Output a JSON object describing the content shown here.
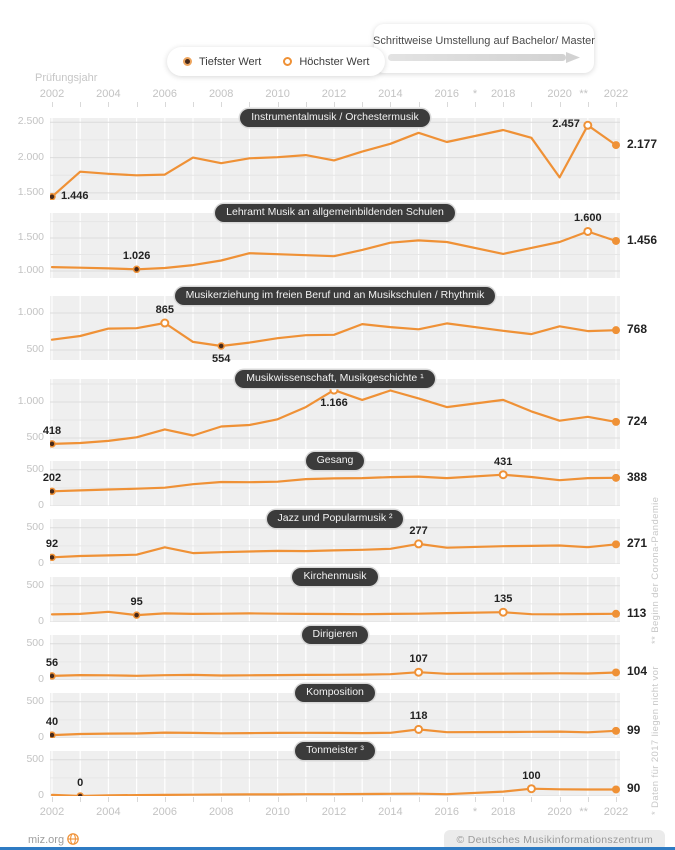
{
  "header": {
    "legend": {
      "min_label": "Tiefster Wert",
      "max_label": "Höchster Wert"
    },
    "transition_note": "Schrittweise Umstellung auf Bachelor/ Master",
    "axis_title": "Prüfungsjahr"
  },
  "axis": {
    "labeled_years": [
      "2002",
      "2004",
      "2006",
      "2008",
      "2010",
      "2012",
      "2014",
      "2016",
      "2018",
      "2020",
      "2022"
    ],
    "star": "*",
    "double_star": "**"
  },
  "footnotes": {
    "pandemic": "** Beginn der Corona-Pandemie",
    "missing_2017": "* Daten für  2017 liegen nicht vor"
  },
  "footer": {
    "site": "miz.org",
    "copyright": "© Deutsches Musikinformationszentrum"
  },
  "colors": {
    "line": "#ef9136",
    "min_dot_fill": "#46291a",
    "max_dot_fill": "#ffffff",
    "title_pill_bg": "#3b3b3b",
    "plot_bg": "#efefef",
    "grid_major": "#dcdcdc",
    "grid_minor": "#e6e6e6",
    "grid_vertical": "#ffffff",
    "axis_text": "#c3c3c3",
    "value_text": "#222222",
    "bottom_bar": "#2f7bc3"
  },
  "chart_data": {
    "type": "line",
    "x_years": [
      2002,
      2003,
      2004,
      2005,
      2006,
      2007,
      2008,
      2009,
      2010,
      2011,
      2012,
      2013,
      2014,
      2015,
      2016,
      2018,
      2019,
      2020,
      2021,
      2022
    ],
    "x_range": [
      2002,
      2022
    ],
    "grid": true,
    "legend_position": "top",
    "panels": [
      {
        "title": "Instrumentalmusik / Orchestermusik",
        "y_ticks": [
          {
            "value": 2500,
            "label": "2.500"
          },
          {
            "value": 2000,
            "label": "2.000"
          },
          {
            "value": 1500,
            "label": "1.500"
          }
        ],
        "y_range": [
          1400,
          2560
        ],
        "values": [
          1446,
          1800,
          1770,
          1750,
          1760,
          2000,
          1920,
          1990,
          2005,
          2035,
          1960,
          2085,
          2195,
          2350,
          2220,
          2390,
          2280,
          1720,
          2457,
          2177
        ],
        "min": {
          "year": 2002,
          "value": 1446,
          "label": "1.446",
          "label_pos": "right"
        },
        "max": {
          "year": 2021,
          "value": 2457,
          "label": "2.457",
          "label_pos": "left"
        },
        "end": {
          "year": 2022,
          "value": 2177,
          "label": "2.177"
        }
      },
      {
        "title": "Lehramt Musik an allgemeinbildenden Schulen",
        "y_ticks": [
          {
            "value": 1500,
            "label": "1.500"
          },
          {
            "value": 1000,
            "label": "1.000"
          }
        ],
        "y_range": [
          894,
          1880
        ],
        "values": [
          1060,
          1050,
          1040,
          1026,
          1045,
          1090,
          1160,
          1270,
          1255,
          1240,
          1225,
          1320,
          1430,
          1465,
          1440,
          1260,
          1350,
          1440,
          1600,
          1456
        ],
        "min": {
          "year": 2005,
          "value": 1026,
          "label": "1.026",
          "label_pos": "above"
        },
        "max": {
          "year": 2021,
          "value": 1600,
          "label": "1.600",
          "label_pos": "above"
        },
        "end": {
          "year": 2022,
          "value": 1456,
          "label": "1.456"
        }
      },
      {
        "title": "Musikerziehung im freien Beruf und an Musikschulen / Rhythmik",
        "y_ticks": [
          {
            "value": 1000,
            "label": "1.000"
          },
          {
            "value": 500,
            "label": "500"
          }
        ],
        "y_range": [
          365,
          1230
        ],
        "values": [
          640,
          690,
          790,
          795,
          865,
          610,
          554,
          600,
          660,
          700,
          705,
          850,
          810,
          780,
          860,
          760,
          715,
          820,
          755,
          768
        ],
        "min": {
          "year": 2008,
          "value": 554,
          "label": "554",
          "label_pos": "below"
        },
        "max": {
          "year": 2006,
          "value": 865,
          "label": "865",
          "label_pos": "above"
        },
        "end": {
          "year": 2022,
          "value": 768,
          "label": "768"
        }
      },
      {
        "title": "Musikwissenschaft, Musikgeschichte ¹",
        "y_ticks": [
          {
            "value": 1000,
            "label": "1.000"
          },
          {
            "value": 500,
            "label": "500"
          }
        ],
        "y_range": [
          347,
          1320
        ],
        "values": [
          418,
          430,
          460,
          510,
          620,
          535,
          660,
          680,
          760,
          930,
          1166,
          1030,
          1160,
          1050,
          930,
          1030,
          870,
          740,
          795,
          724
        ],
        "min": {
          "year": 2002,
          "value": 418,
          "label": "418",
          "label_pos": "above"
        },
        "max": {
          "year": 2012,
          "value": 1166,
          "label": "1.166",
          "label_pos": "below"
        },
        "end": {
          "year": 2022,
          "value": 724,
          "label": "724"
        }
      },
      {
        "title": "Gesang",
        "y_ticks": [
          {
            "value": 500,
            "label": "500"
          },
          {
            "value": 0,
            "label": "0"
          }
        ],
        "y_range": [
          0,
          620
        ],
        "values": [
          202,
          215,
          228,
          238,
          252,
          300,
          330,
          328,
          335,
          370,
          380,
          385,
          398,
          405,
          385,
          431,
          400,
          355,
          385,
          388
        ],
        "min": {
          "year": 2002,
          "value": 202,
          "label": "202",
          "label_pos": "above"
        },
        "max": {
          "year": 2018,
          "value": 431,
          "label": "431",
          "label_pos": "above"
        },
        "end": {
          "year": 2022,
          "value": 388,
          "label": "388"
        }
      },
      {
        "title": "Jazz und Popularmusik ²",
        "y_ticks": [
          {
            "value": 500,
            "label": "500"
          },
          {
            "value": 0,
            "label": "0"
          }
        ],
        "y_range": [
          0,
          620
        ],
        "values": [
          92,
          110,
          118,
          128,
          230,
          150,
          162,
          172,
          180,
          178,
          188,
          196,
          210,
          277,
          225,
          245,
          250,
          255,
          232,
          271
        ],
        "min": {
          "year": 2002,
          "value": 92,
          "label": "92",
          "label_pos": "above"
        },
        "max": {
          "year": 2015,
          "value": 277,
          "label": "277",
          "label_pos": "above"
        },
        "end": {
          "year": 2022,
          "value": 271,
          "label": "271"
        }
      },
      {
        "title": "Kirchenmusik",
        "y_ticks": [
          {
            "value": 500,
            "label": "500"
          },
          {
            "value": 0,
            "label": "0"
          }
        ],
        "y_range": [
          0,
          620
        ],
        "values": [
          105,
          112,
          140,
          95,
          118,
          112,
          115,
          118,
          115,
          112,
          110,
          108,
          112,
          115,
          122,
          135,
          108,
          106,
          110,
          113
        ],
        "min": {
          "year": 2005,
          "value": 95,
          "label": "95",
          "label_pos": "above"
        },
        "max": {
          "year": 2018,
          "value": 135,
          "label": "135",
          "label_pos": "above"
        },
        "end": {
          "year": 2022,
          "value": 113,
          "label": "113"
        }
      },
      {
        "title": "Dirigieren",
        "y_ticks": [
          {
            "value": 500,
            "label": "500"
          },
          {
            "value": 0,
            "label": "0"
          }
        ],
        "y_range": [
          0,
          620
        ],
        "values": [
          56,
          68,
          65,
          58,
          66,
          70,
          62,
          65,
          68,
          70,
          72,
          75,
          80,
          107,
          85,
          88,
          90,
          92,
          90,
          104
        ],
        "min": {
          "year": 2002,
          "value": 56,
          "label": "56",
          "label_pos": "above"
        },
        "max": {
          "year": 2015,
          "value": 107,
          "label": "107",
          "label_pos": "above"
        },
        "end": {
          "year": 2022,
          "value": 104,
          "label": "104"
        }
      },
      {
        "title": "Komposition",
        "y_ticks": [
          {
            "value": 500,
            "label": "500"
          },
          {
            "value": 0,
            "label": "0"
          }
        ],
        "y_range": [
          0,
          620
        ],
        "values": [
          40,
          55,
          60,
          62,
          75,
          70,
          65,
          68,
          70,
          72,
          70,
          68,
          72,
          118,
          80,
          82,
          85,
          88,
          78,
          99
        ],
        "min": {
          "year": 2002,
          "value": 40,
          "label": "40",
          "label_pos": "above"
        },
        "max": {
          "year": 2015,
          "value": 118,
          "label": "118",
          "label_pos": "above"
        },
        "end": {
          "year": 2022,
          "value": 99,
          "label": "99"
        }
      },
      {
        "title": "Tonmeister ³",
        "y_ticks": [
          {
            "value": 500,
            "label": "500"
          },
          {
            "value": 0,
            "label": "0"
          }
        ],
        "y_range": [
          0,
          620
        ],
        "values": [
          15,
          0,
          10,
          12,
          15,
          18,
          20,
          22,
          22,
          25,
          25,
          28,
          30,
          32,
          25,
          60,
          100,
          92,
          90,
          90
        ],
        "min": {
          "year": 2003,
          "value": 0,
          "label": "0",
          "label_pos": "above"
        },
        "max": {
          "year": 2019,
          "value": 100,
          "label": "100",
          "label_pos": "above"
        },
        "end": {
          "year": 2022,
          "value": 90,
          "label": "90"
        }
      }
    ]
  }
}
